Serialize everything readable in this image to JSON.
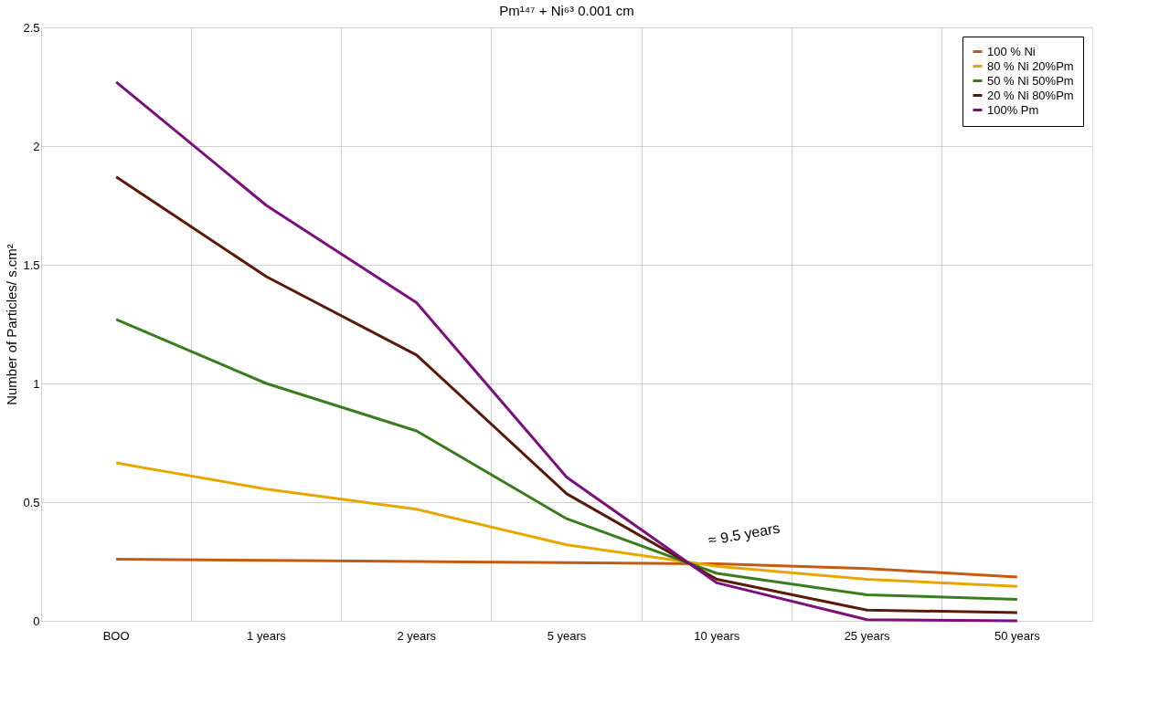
{
  "chart_data": {
    "type": "line",
    "title": "Pm¹⁴⁷ + Ni⁶³   0.001 cm",
    "ylabel": "Number of Particles/ s.cm²",
    "categories": [
      "BOO",
      "1 years",
      "2 years",
      "5 years",
      "10 years",
      "25 years",
      "50 years"
    ],
    "series": [
      {
        "name": "100 % Ni",
        "color": "#c55a11",
        "values": [
          0.26,
          0.255,
          0.25,
          0.245,
          0.24,
          0.22,
          0.185
        ]
      },
      {
        "name": "80 % Ni 20%Pm",
        "color": "#e6a800",
        "values": [
          0.665,
          0.555,
          0.47,
          0.32,
          0.23,
          0.175,
          0.145
        ]
      },
      {
        "name": "50 % Ni 50%Pm",
        "color": "#3a7d1e",
        "values": [
          1.27,
          1.0,
          0.8,
          0.43,
          0.2,
          0.11,
          0.09
        ]
      },
      {
        "name": "20 % Ni 80%Pm",
        "color": "#5a1a0a",
        "values": [
          1.87,
          1.45,
          1.12,
          0.535,
          0.175,
          0.045,
          0.035
        ]
      },
      {
        "name": "100% Pm",
        "color": "#7b0f7b",
        "values": [
          2.27,
          1.75,
          1.34,
          0.605,
          0.16,
          0.005,
          0.0
        ]
      }
    ],
    "ylim": [
      0,
      2.5
    ],
    "yticks": [
      {
        "value": 0,
        "label": "0"
      },
      0.5,
      {
        "value": 1,
        "label": "1"
      },
      1.5,
      {
        "value": 2,
        "label": "2"
      },
      2.5
    ],
    "grid": true,
    "legend": "top right",
    "line_style": "solid",
    "marker": "none",
    "annotations": [
      "≈ 9.5 years"
    ]
  }
}
